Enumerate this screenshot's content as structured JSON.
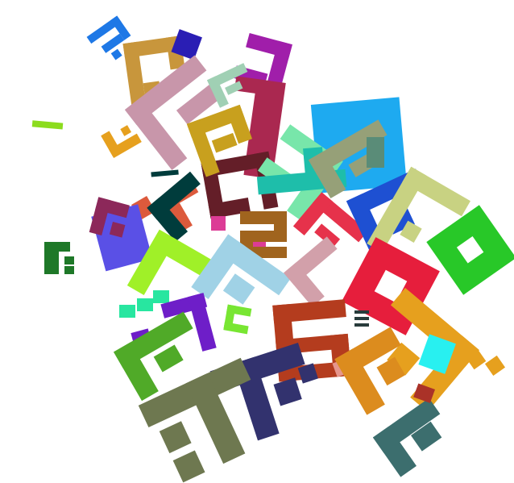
{
  "scene": {
    "description_kind": "abstract-collage",
    "background": "#ffffff",
    "palette": {
      "blue": "#1e78e6",
      "tan": "#c8963c",
      "orange": "#e6a01e",
      "pink_mauve": "#c896aa",
      "maroon": "#aa2850",
      "purple": "#a01eaa",
      "magenta": "#dc3c96",
      "dark_brown": "#641e28",
      "olive_gold": "#c8a01e",
      "mint": "#78e6aa",
      "teal": "#1ebeaa",
      "sky": "#1eaaf0",
      "sage": "#96a078",
      "dark_green": "#003c3c",
      "forest": "#1e7828",
      "lime": "#8cdc1e",
      "light_lime": "#a0f028",
      "brown": "#a0641e",
      "light_blue": "#a0d2e6",
      "royal_blue": "#1e50d2",
      "khaki": "#c8d282",
      "red": "#e61e3c",
      "rust": "#b43c1e",
      "navy": "#32326e",
      "olive": "#6e7850",
      "green": "#50aa28",
      "violet": "#6e1ec8",
      "grass": "#28c828",
      "slate": "#3c6e6e",
      "cyan": "#28f0f0",
      "salmon": "#e6968c",
      "plum": "#8c285a",
      "coral": "#dc5a3c",
      "seafoam": "#28e6a0"
    }
  }
}
